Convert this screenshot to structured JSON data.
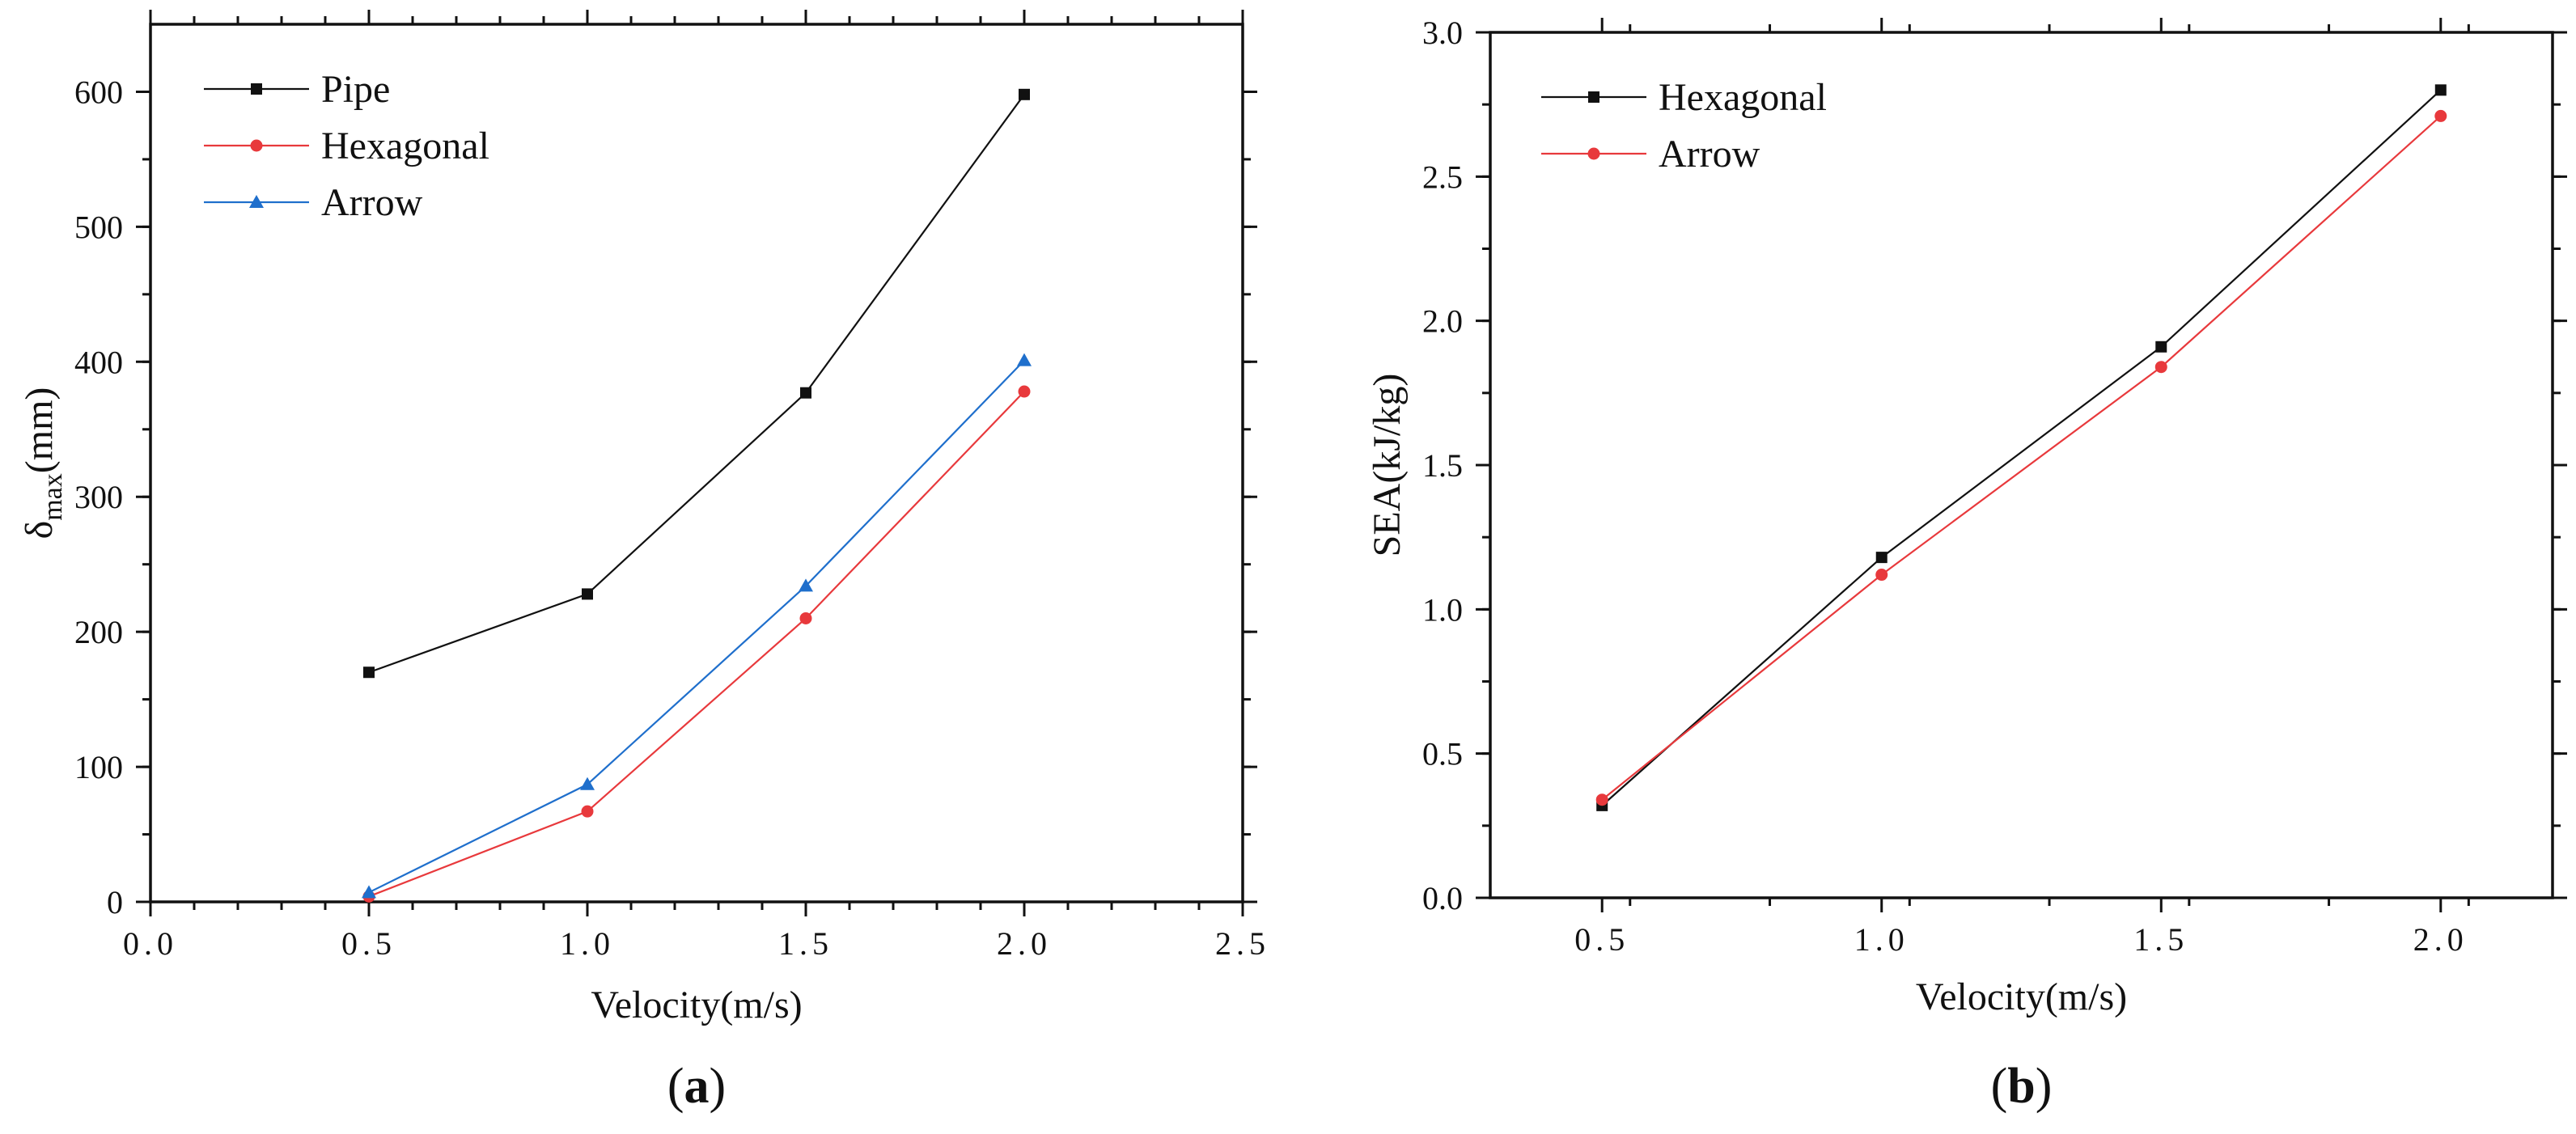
{
  "chart_data": [
    {
      "type": "line",
      "panel_label": "(a)",
      "title": "",
      "xlabel": "Velocity(m/s)",
      "ylabel": "δmax(mm)",
      "ylabel_main": "δ",
      "ylabel_sub": "max",
      "ylabel_unit": "(mm)",
      "xlim": [
        0.0,
        2.5
      ],
      "ylim": [
        0,
        650
      ],
      "xticks": [
        "0.0",
        "0.5",
        "1.0",
        "1.5",
        "2.0",
        "2.5"
      ],
      "yticks": [
        "0",
        "100",
        "200",
        "300",
        "400",
        "500",
        "600"
      ],
      "legend_position": "top-left",
      "series": [
        {
          "name": "Pipe",
          "color": "#111111",
          "marker": "square",
          "x": [
            0.5,
            1.0,
            1.5,
            2.0
          ],
          "values": [
            170,
            228,
            377,
            598
          ]
        },
        {
          "name": "Hexagonal",
          "color": "#e8393c",
          "marker": "circle",
          "x": [
            0.5,
            1.0,
            1.5,
            2.0
          ],
          "values": [
            4,
            67,
            210,
            378
          ]
        },
        {
          "name": "Arrow",
          "color": "#1f6fcc",
          "marker": "triangle",
          "x": [
            0.5,
            1.0,
            1.5,
            2.0
          ],
          "values": [
            7,
            87,
            234,
            401
          ]
        }
      ]
    },
    {
      "type": "line",
      "panel_label": "(b)",
      "title": "",
      "xlabel": "Velocity(m/s)",
      "ylabel": "SEA(kJ/kg)",
      "xlim": [
        0.3,
        2.2
      ],
      "ylim": [
        0.0,
        3.0
      ],
      "xticks": [
        "0.5",
        "1.0",
        "1.5",
        "2.0"
      ],
      "yticks": [
        "0.0",
        "0.5",
        "1.0",
        "1.5",
        "2.0",
        "2.5",
        "3.0"
      ],
      "legend_position": "top-left",
      "series": [
        {
          "name": "Hexagonal",
          "color": "#111111",
          "marker": "square",
          "x": [
            0.5,
            1.0,
            1.5,
            2.0
          ],
          "values": [
            0.32,
            1.18,
            1.91,
            2.8
          ]
        },
        {
          "name": "Arrow",
          "color": "#e8393c",
          "marker": "circle",
          "x": [
            0.5,
            1.0,
            1.5,
            2.0
          ],
          "values": [
            0.34,
            1.12,
            1.84,
            2.71
          ]
        }
      ]
    }
  ]
}
